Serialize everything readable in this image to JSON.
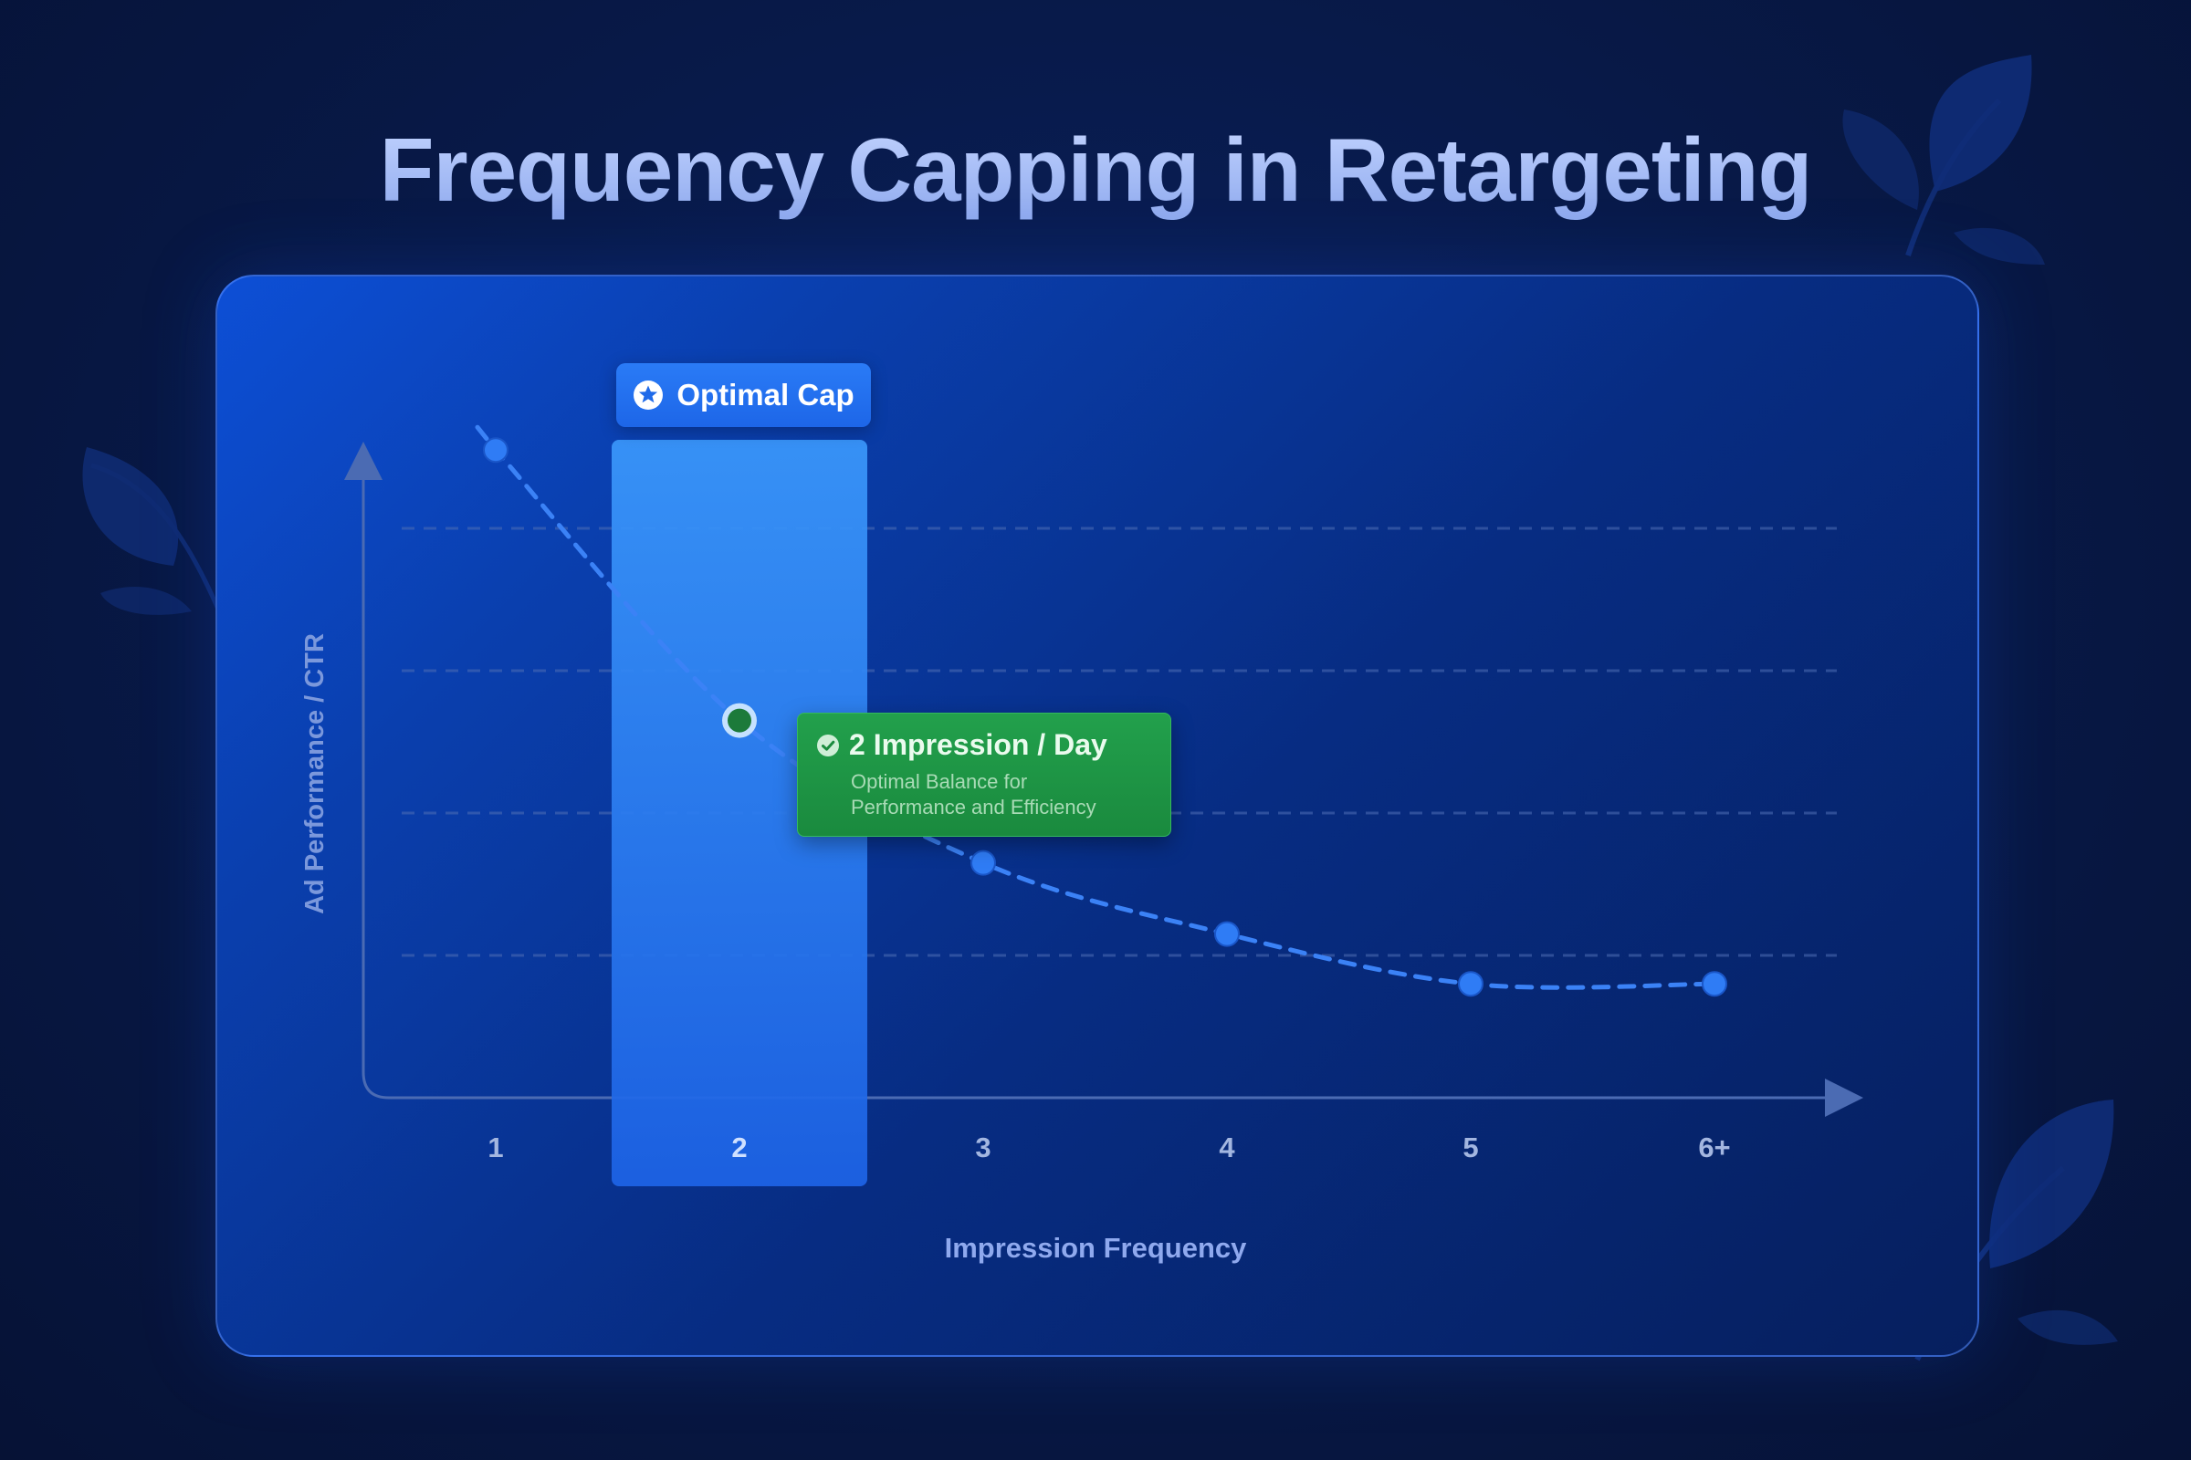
{
  "page": {
    "title": "Frequency Capping in Retargeting"
  },
  "highlight": {
    "label": "Optimal Cap",
    "icon": "star-circle-icon",
    "category": "2"
  },
  "tooltip": {
    "title": "2 Impression / Day",
    "subtitle_line1": "Optimal Balance for",
    "subtitle_line2": "Performance and Efficiency",
    "icon": "check-circle-icon"
  },
  "colors": {
    "background": "#081a4a",
    "card": "#0a3fae",
    "highlight_band": "#2f86f8",
    "line": "#3b82f6",
    "tooltip": "#1f9a48",
    "title": "#9db8f5"
  },
  "chart_data": {
    "type": "line",
    "title": "Frequency Capping in Retargeting",
    "xlabel": "Impression Frequency",
    "ylabel": "Ad Performance / CTR",
    "categories": [
      "1",
      "2",
      "3",
      "4",
      "5",
      "6+"
    ],
    "series": [
      {
        "values": [
          91,
          53,
          33,
          23,
          16,
          16
        ]
      }
    ],
    "ylim": [
      0,
      100
    ],
    "highlighted_category": "2",
    "grid": true,
    "line_style": "dashed",
    "legend": "none"
  }
}
